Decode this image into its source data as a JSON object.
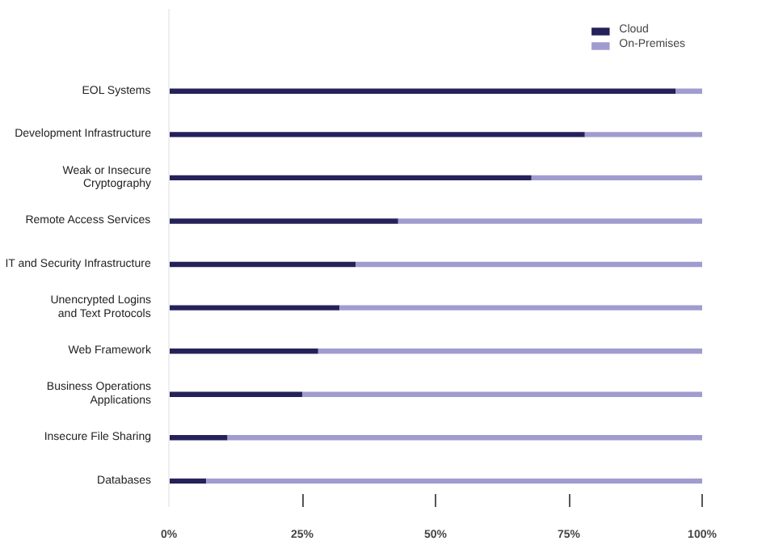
{
  "chart_data": {
    "type": "bar",
    "orientation": "horizontal",
    "stacked": true,
    "categories": [
      "EOL Systems",
      "Development Infrastructure",
      "Weak or Insecure\nCryptography",
      "Remote Access Services",
      "IT and Security Infrastructure",
      "Unencrypted Logins\nand Text Protocols",
      "Web Framework",
      "Business Operations\nApplications",
      "Insecure File Sharing",
      "Databases"
    ],
    "series": [
      {
        "name": "Cloud",
        "color": "#25215a",
        "values": [
          95,
          78,
          68,
          43,
          35,
          32,
          28,
          25,
          11,
          7
        ]
      },
      {
        "name": "On-Premises",
        "color": "#a09ccf",
        "values": [
          5,
          22,
          32,
          57,
          65,
          68,
          72,
          75,
          89,
          93
        ]
      }
    ],
    "xlim": [
      0,
      100
    ],
    "xticks": [
      {
        "value": 0,
        "label": "0%"
      },
      {
        "value": 25,
        "label": "25%"
      },
      {
        "value": 50,
        "label": "50%"
      },
      {
        "value": 75,
        "label": "75%"
      },
      {
        "value": 100,
        "label": "100%"
      }
    ],
    "grid": false,
    "legend": "top right"
  }
}
